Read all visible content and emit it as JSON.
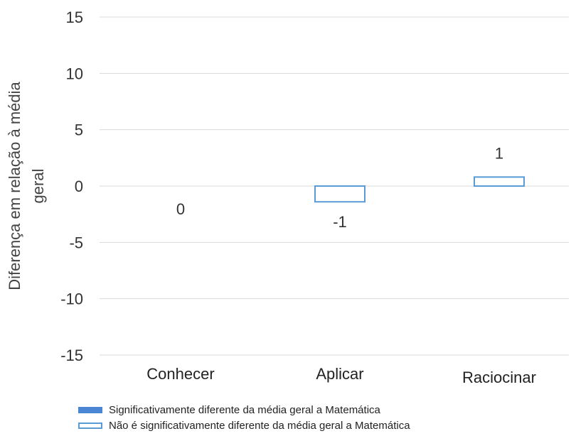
{
  "chart_data": {
    "type": "bar",
    "categories": [
      "Conhecer",
      "Aplicar",
      "Raciocinar"
    ],
    "series": [
      {
        "name": "Não é significativamente diferente da média geral a Matemática",
        "values": [
          0,
          -1.4,
          0.8
        ],
        "data_labels": [
          "0",
          "-1",
          "1"
        ],
        "style": "hollow",
        "color": "#5b9bd5"
      }
    ],
    "ylabel": "Diferença em relação à média geral",
    "ylabel_lines": [
      "Diferença em relação à média",
      "geral"
    ],
    "xlabel": "",
    "ylim": [
      -15,
      15
    ],
    "yticks": [
      15,
      10,
      5,
      0,
      -5,
      -10,
      -15
    ],
    "ytick_labels": [
      "15",
      "10",
      "5",
      "0",
      "-5",
      "-10",
      "-15"
    ],
    "grid": true,
    "gridline_color": "#d9d9d9",
    "legend": {
      "position": "bottom-left",
      "items": [
        {
          "label": "Significativamente diferente da média geral a Matemática",
          "style": "filled",
          "color": "#4a86d4"
        },
        {
          "label": "Não é significativamente diferente da média geral a Matemática",
          "style": "hollow",
          "color": "#5b9bd5"
        }
      ]
    }
  }
}
